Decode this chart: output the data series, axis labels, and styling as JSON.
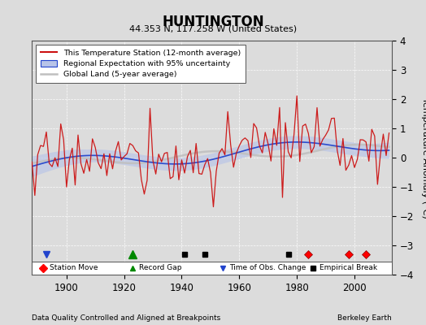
{
  "title": "HUNTINGTON",
  "subtitle": "44.353 N, 117.258 W (United States)",
  "ylabel": "Temperature Anomaly (°C)",
  "footer_left": "Data Quality Controlled and Aligned at Breakpoints",
  "footer_right": "Berkeley Earth",
  "ylim": [
    -4,
    4
  ],
  "xlim": [
    1888,
    2013
  ],
  "yticks": [
    -4,
    -3,
    -2,
    -1,
    0,
    1,
    2,
    3,
    4
  ],
  "xticks": [
    1900,
    1920,
    1940,
    1960,
    1980,
    2000
  ],
  "bg_color": "#dcdcdc",
  "plot_bg_color": "#dcdcdc",
  "station_move_years": [
    1984,
    1998,
    2004
  ],
  "record_gap_years": [
    1923
  ],
  "obs_change_years": [
    1893
  ],
  "empirical_break_years": [
    1941,
    1948,
    1977
  ],
  "seed": 17,
  "marker_y": -3.3
}
